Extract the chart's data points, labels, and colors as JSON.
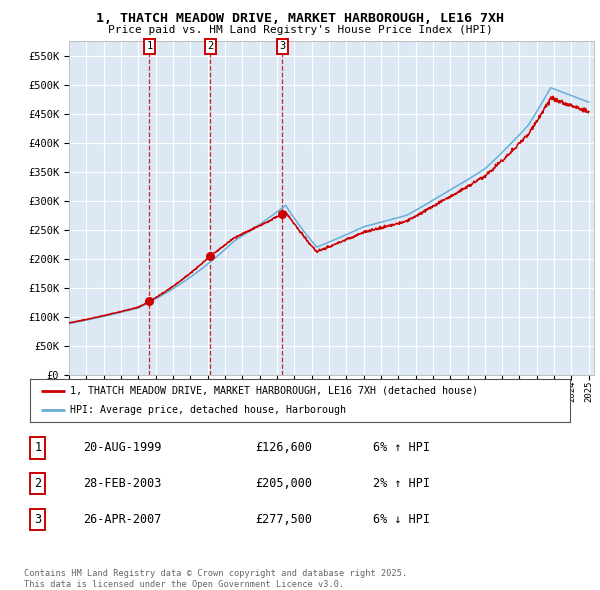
{
  "title_line1": "1, THATCH MEADOW DRIVE, MARKET HARBOROUGH, LE16 7XH",
  "title_line2": "Price paid vs. HM Land Registry's House Price Index (HPI)",
  "ylim": [
    0,
    575000
  ],
  "ytick_values": [
    0,
    50000,
    100000,
    150000,
    200000,
    250000,
    300000,
    350000,
    400000,
    450000,
    500000,
    550000
  ],
  "ytick_labels": [
    "£0",
    "£50K",
    "£100K",
    "£150K",
    "£200K",
    "£250K",
    "£300K",
    "£350K",
    "£400K",
    "£450K",
    "£500K",
    "£550K"
  ],
  "background_color": "#dce9f5",
  "grid_color": "#ffffff",
  "hpi_line_color": "#6aaed6",
  "price_line_color": "#cc0000",
  "vline_color": "#cc0000",
  "sale1_date_num": 1999.644,
  "sale1_price": 126600,
  "sale2_date_num": 2003.161,
  "sale2_price": 205000,
  "sale3_date_num": 2007.319,
  "sale3_price": 277500,
  "legend_price_label": "1, THATCH MEADOW DRIVE, MARKET HARBOROUGH, LE16 7XH (detached house)",
  "legend_hpi_label": "HPI: Average price, detached house, Harborough",
  "table_rows": [
    {
      "num": "1",
      "date": "20-AUG-1999",
      "price": "£126,600",
      "change": "6% ↑ HPI"
    },
    {
      "num": "2",
      "date": "28-FEB-2003",
      "price": "£205,000",
      "change": "2% ↑ HPI"
    },
    {
      "num": "3",
      "date": "26-APR-2007",
      "price": "£277,500",
      "change": "6% ↓ HPI"
    }
  ],
  "footnote": "Contains HM Land Registry data © Crown copyright and database right 2025.\nThis data is licensed under the Open Government Licence v3.0."
}
